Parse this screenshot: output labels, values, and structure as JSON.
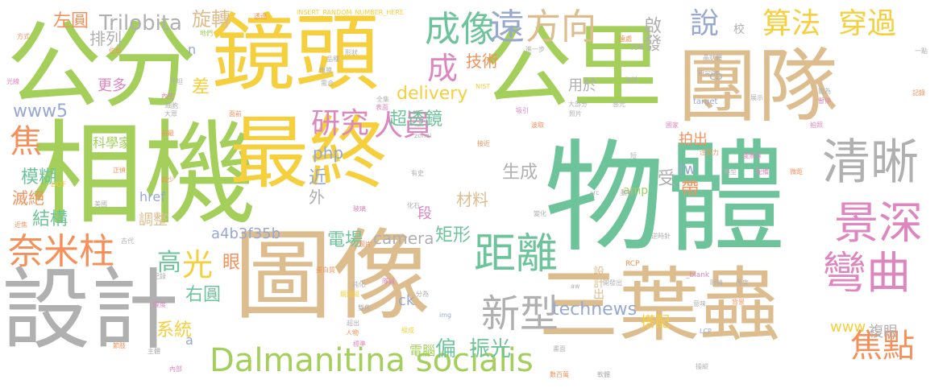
{
  "colors": {
    "green": "#a3cf5a",
    "tan": "#ddbd8e",
    "teal": "#6ec49a",
    "gray": "#b0b0b0",
    "yellow": "#f5cf3c",
    "pink": "#de86bf",
    "orange": "#f5905a",
    "blue": "#98a8d0"
  },
  "words": [
    {
      "text": "相機",
      "color": "#a3cf5a"
    },
    {
      "text": "公分",
      "color": "#a3cf5a"
    },
    {
      "text": "鏡頭",
      "color": "#f5cf3c"
    },
    {
      "text": "公里",
      "color": "#a3cf5a"
    },
    {
      "text": "物體",
      "color": "#6ec49a"
    },
    {
      "text": "團隊",
      "color": "#ddbd8e"
    },
    {
      "text": "圖像",
      "color": "#ddbd8e"
    },
    {
      "text": "設計",
      "color": "#b0b0b0"
    },
    {
      "text": "三葉蟲",
      "color": "#ddbd8e"
    },
    {
      "text": "最終",
      "color": "#f5cf3c"
    },
    {
      "text": "清晰",
      "color": "#b0b0b0"
    },
    {
      "text": "景深",
      "color": "#de86bf"
    },
    {
      "text": "彎曲",
      "color": "#de86bf"
    },
    {
      "text": "焦點",
      "color": "#f5905a"
    },
    {
      "text": "距離",
      "color": "#6ec49a"
    },
    {
      "text": "新型",
      "color": "#b0b0b0"
    },
    {
      "text": "成像",
      "color": "#6ec49a"
    },
    {
      "text": "方向",
      "color": "#ddbd8e"
    },
    {
      "text": "遠",
      "color": "#98a8d0"
    },
    {
      "text": "說",
      "color": "#98a8d0"
    },
    {
      "text": "算法",
      "color": "#f5cf3c"
    },
    {
      "text": "穿過",
      "color": "#f5cf3c"
    },
    {
      "text": "奈米柱",
      "color": "#f5905a"
    },
    {
      "text": "Dalmanitina socialis",
      "color": "#a3cf5a"
    },
    {
      "text": "研究",
      "color": "#de86bf"
    },
    {
      "text": "人員",
      "color": "#de86bf"
    },
    {
      "text": "成",
      "color": "#de86bf"
    },
    {
      "text": "技術",
      "color": "#f5905a"
    },
    {
      "text": "超透鏡",
      "color": "#6ec49a"
    },
    {
      "text": "Trilobita",
      "color": "#b0b0b0"
    },
    {
      "text": "旋轉",
      "color": "#ddbd8e"
    },
    {
      "text": "左圓",
      "color": "#f5905a"
    },
    {
      "text": "排列",
      "color": "#b0b0b0"
    },
    {
      "text": "更多",
      "color": "#de86bf"
    },
    {
      "text": "www5",
      "color": "#98a8d0"
    },
    {
      "text": "焦",
      "color": "#f5905a"
    },
    {
      "text": "模糊",
      "color": "#6ec49a"
    },
    {
      "text": "滅絕",
      "color": "#f5905a"
    },
    {
      "text": "結構",
      "color": "#6ec49a"
    },
    {
      "text": "光",
      "color": "#f5cf3c"
    },
    {
      "text": "高",
      "color": "#6ec49a"
    },
    {
      "text": "眼",
      "color": "#f5905a"
    },
    {
      "text": "右圓",
      "color": "#6ec49a"
    },
    {
      "text": "系統",
      "color": "#f5cf3c"
    },
    {
      "text": "a4b3f35b",
      "color": "#98a8d0"
    },
    {
      "text": "電場",
      "color": "#6ec49a"
    },
    {
      "text": "camera",
      "color": "#b0b0b0"
    },
    {
      "text": "矩形",
      "color": "#6ec49a"
    },
    {
      "text": "technews",
      "color": "#98a8d0"
    },
    {
      "text": "偏",
      "color": "#6ec49a"
    },
    {
      "text": "振光",
      "color": "#6ec49a"
    },
    {
      "text": "設計出",
      "color": "#ddbd8e"
    },
    {
      "text": "搭配",
      "color": "#f5cf3c"
    },
    {
      "text": "delivery",
      "color": "#f5cf3c"
    },
    {
      "text": "php",
      "color": "#98a8d0"
    },
    {
      "text": "生成",
      "color": "#b0b0b0"
    },
    {
      "text": "材料",
      "color": "#ddbd8e"
    },
    {
      "text": "近",
      "color": "#98a8d0"
    },
    {
      "text": "外",
      "color": "#b0b0b0"
    },
    {
      "text": "段",
      "color": "#de86bf"
    },
    {
      "text": "用於",
      "color": "#b0b0b0"
    },
    {
      "text": "啟發",
      "color": "#b0b0b0"
    },
    {
      "text": "校",
      "color": "#b0b0b0"
    },
    {
      "text": "拍出",
      "color": "#f5905a"
    },
    {
      "text": "tw",
      "color": "#98a8d0"
    },
    {
      "text": "受",
      "color": "#b0b0b0"
    },
    {
      "text": "帶",
      "color": "#f5905a"
    },
    {
      "text": "www",
      "color": "#f5cf3c"
    },
    {
      "text": "複眼",
      "color": "#b0b0b0"
    },
    {
      "text": "科學家",
      "color": "#a3cf5a"
    },
    {
      "text": "差",
      "color": "#f5cf3c"
    },
    {
      "text": "href",
      "color": "#98a8d0"
    },
    {
      "text": "調整",
      "color": "#ddbd8e"
    },
    {
      "text": "n",
      "color": "#98a8d0"
    },
    {
      "text": "cb",
      "color": "#b0b0b0"
    },
    {
      "text": "amp",
      "color": "#a3cf5a"
    },
    {
      "text": "電腦",
      "color": "#a3cf5a"
    },
    {
      "text": "ck",
      "color": "#98a8d0"
    },
    {
      "text": "a",
      "color": "#98a8d0"
    },
    {
      "text": "INSERT_RANDOM_NUMBER_HERE",
      "color": "#f5cf3c"
    },
    {
      "text": "NIST",
      "color": "#f5cf3c"
    },
    {
      "text": "_blank",
      "color": "#de86bf"
    },
    {
      "text": "target",
      "color": "#98a8d0"
    },
    {
      "text": "DOF",
      "color": "#f5cf3c"
    },
    {
      "text": "RCP",
      "color": "#f5905a"
    },
    {
      "text": "LCP",
      "color": "#98a8d0"
    },
    {
      "text": "img",
      "color": "#98a8d0"
    },
    {
      "text": "src",
      "color": "#b0b0b0"
    },
    {
      "text": "zonei",
      "color": "#b0b0b0"
    },
    {
      "text": "aw",
      "color": "#b0b0b0"
    },
    {
      "text": "光線",
      "color": "#de86bf"
    },
    {
      "text": "方式",
      "color": "#f5905a"
    },
    {
      "text": "地們",
      "color": "#a3cf5a"
    },
    {
      "text": "平坦",
      "color": "#b0b0b0"
    },
    {
      "text": "內生",
      "color": "#de86bf"
    },
    {
      "text": "前最",
      "color": "#f5905a"
    },
    {
      "text": "正偵",
      "color": "#f5905a"
    },
    {
      "text": "較少",
      "color": "#f5905a"
    },
    {
      "text": "美國",
      "color": "#b0b0b0"
    },
    {
      "text": "近焦",
      "color": "#f5905a"
    },
    {
      "text": "古代",
      "color": "#b0b0b0"
    },
    {
      "text": "紀錄",
      "color": "#b0b0b0"
    },
    {
      "text": "程度",
      "color": "#de86bf"
    },
    {
      "text": "主體",
      "color": "#b0b0b0"
    },
    {
      "text": "內部",
      "color": "#de86bf"
    },
    {
      "text": "節肢",
      "color": "#f5905a"
    },
    {
      "text": "品種",
      "color": "#b0b0b0"
    },
    {
      "text": "形狀",
      "color": "#b0b0b0"
    },
    {
      "text": "角膜",
      "color": "#b0b0b0"
    },
    {
      "text": "全集",
      "color": "#b0b0b0"
    },
    {
      "text": "表面",
      "color": "#de86bf"
    },
    {
      "text": "玻璃",
      "color": "#de86bf"
    },
    {
      "text": "化石",
      "color": "#b0b0b0"
    },
    {
      "text": "有史",
      "color": "#b0b0b0"
    },
    {
      "text": "接近",
      "color": "#f5905a"
    },
    {
      "text": "短",
      "color": "#b0b0b0"
    },
    {
      "text": "變化",
      "color": "#b0b0b0"
    },
    {
      "text": "動物",
      "color": "#b0b0b0"
    },
    {
      "text": "晶狀體",
      "color": "#b0b0b0"
    },
    {
      "text": "注意力",
      "color": "#f5905a"
    },
    {
      "text": "淺景深",
      "color": "#de86bf"
    },
    {
      "text": "典型",
      "color": "#b0b0b0"
    },
    {
      "text": "配備",
      "color": "#de86bf"
    },
    {
      "text": "微距",
      "color": "#f5905a"
    },
    {
      "text": "研究院",
      "color": "#b0b0b0"
    },
    {
      "text": "國家",
      "color": "#de86bf"
    },
    {
      "text": "逆時針",
      "color": "#b0b0b0"
    },
    {
      "text": "眼睛",
      "color": "#b0b0b0"
    },
    {
      "text": "角度",
      "color": "#b0b0b0"
    },
    {
      "text": "背景",
      "color": "#f5905a"
    },
    {
      "text": "意味",
      "color": "#b0b0b0"
    },
    {
      "text": "軟體",
      "color": "#b0b0b0"
    },
    {
      "text": "數百萬",
      "color": "#f5905a"
    },
    {
      "text": "開發出",
      "color": "#b0b0b0"
    },
    {
      "text": "操縱",
      "color": "#b0b0b0"
    },
    {
      "text": "畫面",
      "color": "#b0b0b0"
    },
    {
      "text": "標準",
      "color": "#de86bf"
    },
    {
      "text": "人物",
      "color": "#f5905a"
    },
    {
      "text": "組成",
      "color": "#f5cf3c"
    },
    {
      "text": "超出",
      "color": "#b0b0b0"
    },
    {
      "text": "鏡頭組",
      "color": "#f5cf3c"
    },
    {
      "text": "感光",
      "color": "#b0b0b0"
    },
    {
      "text": "照片",
      "color": "#b0b0b0"
    },
    {
      "text": "大部分",
      "color": "#b0b0b0"
    },
    {
      "text": "吸引",
      "color": "#de86bf"
    },
    {
      "text": "波取",
      "color": "#f5905a"
    },
    {
      "text": "光場",
      "color": "#b0b0b0"
    },
    {
      "text": "遠處",
      "color": "#f5905a"
    },
    {
      "text": "海洋",
      "color": "#b0b0b0"
    },
    {
      "text": "展示",
      "color": "#b0b0b0"
    },
    {
      "text": "記錄",
      "color": "#f5905a"
    },
    {
      "text": "拍照",
      "color": "#de86bf"
    },
    {
      "text": "一點",
      "color": "#b0b0b0"
    },
    {
      "text": "簡為",
      "color": "#b0b0b0"
    },
    {
      "text": "透過",
      "color": "#f5905a"
    },
    {
      "text": "細胞",
      "color": "#b0b0b0"
    },
    {
      "text": "大眾",
      "color": "#b0b0b0"
    },
    {
      "text": "面前",
      "color": "#f5905a"
    },
    {
      "text": "需合",
      "color": "#b0b0b0"
    },
    {
      "text": "進一步",
      "color": "#b0b0b0"
    },
    {
      "text": "分為",
      "color": "#b0b0b0"
    },
    {
      "text": "隊員",
      "color": "#de86bf"
    },
    {
      "text": "鈍化",
      "color": "#b0b0b0"
    },
    {
      "text": "雙焦",
      "color": "#b0b0b0"
    },
    {
      "text": "鏡片",
      "color": "#f5905a"
    },
    {
      "text": "蛋白質",
      "color": "#f5905a"
    },
    {
      "text": "位於",
      "color": "#f5905a"
    },
    {
      "text": "暫停",
      "color": "#de86bf"
    }
  ]
}
